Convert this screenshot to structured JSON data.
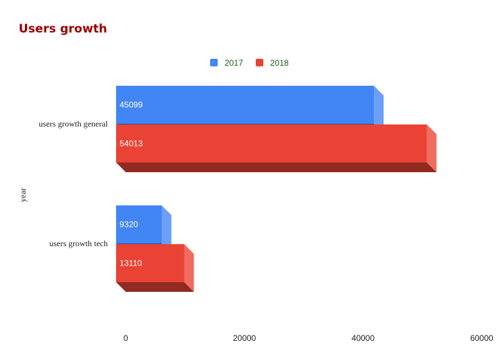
{
  "chart_data": {
    "type": "bar",
    "orientation": "horizontal",
    "style": "3d",
    "title": "Users growth",
    "title_color": "#990000",
    "ylabel": "year",
    "xlabel": "",
    "categories": [
      "users growth general",
      "users growth tech"
    ],
    "series": [
      {
        "name": "2017",
        "values": [
          45099,
          9320
        ],
        "color": "#4285f4"
      },
      {
        "name": "2018",
        "values": [
          54013,
          13110
        ],
        "color": "#ea4335"
      }
    ],
    "xlim": [
      0,
      60000
    ],
    "x_ticks": [
      "0",
      "20000",
      "40000",
      "60000"
    ],
    "x_tick_values": [
      0,
      20000,
      40000,
      60000
    ],
    "legend_position": "top",
    "legend_color": "#1a5e1a",
    "grid": false,
    "data_labels": true
  }
}
